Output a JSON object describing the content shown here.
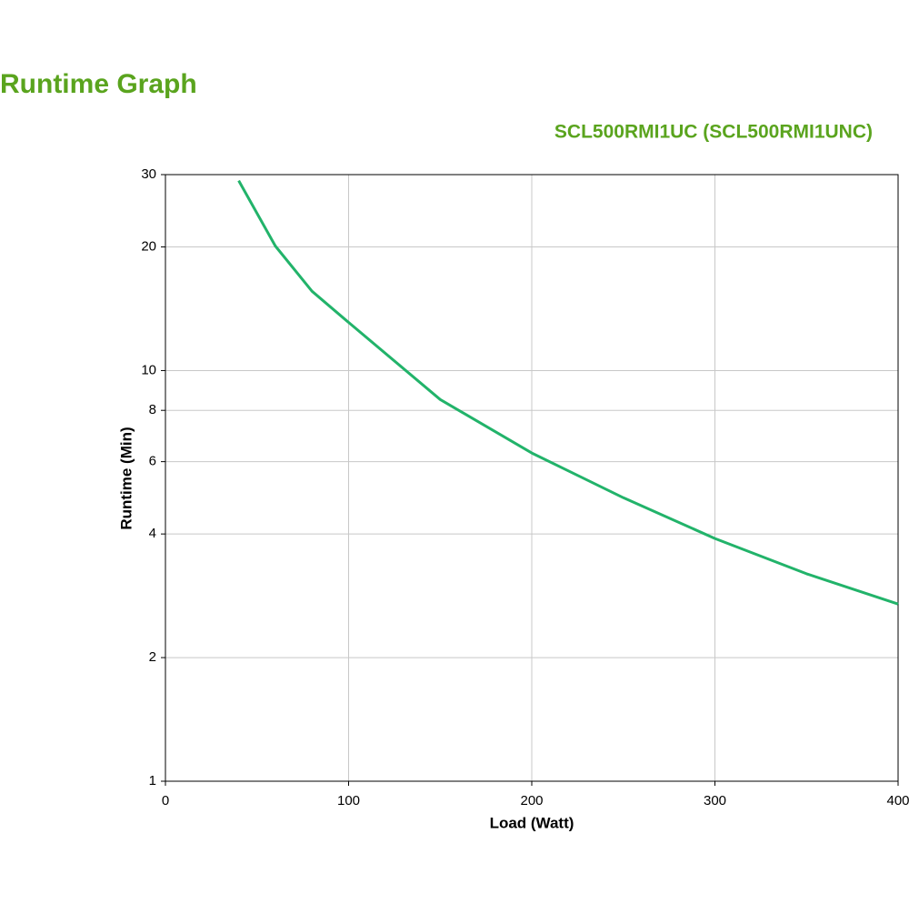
{
  "chart_data": {
    "type": "line",
    "title": "Runtime Graph",
    "subtitle": "SCL500RMI1UC (SCL500RMI1UNC)",
    "x_label": "Load (Watt)",
    "y_label": "Runtime (Min)",
    "x": [
      40,
      60,
      80,
      100,
      150,
      200,
      250,
      300,
      350,
      400
    ],
    "series": [
      {
        "name": "Runtime",
        "color": "#22b36a",
        "values": [
          29,
          20.1,
          15.6,
          13.1,
          8.5,
          6.3,
          4.9,
          3.9,
          3.2,
          2.7
        ]
      }
    ],
    "xlim": [
      0,
      400
    ],
    "xticks": [
      0,
      100,
      200,
      300,
      400
    ],
    "ylim": [
      1,
      30
    ],
    "yticks": [
      1,
      2,
      4,
      6,
      8,
      10,
      20,
      30
    ],
    "y_log": true,
    "grid": true
  }
}
